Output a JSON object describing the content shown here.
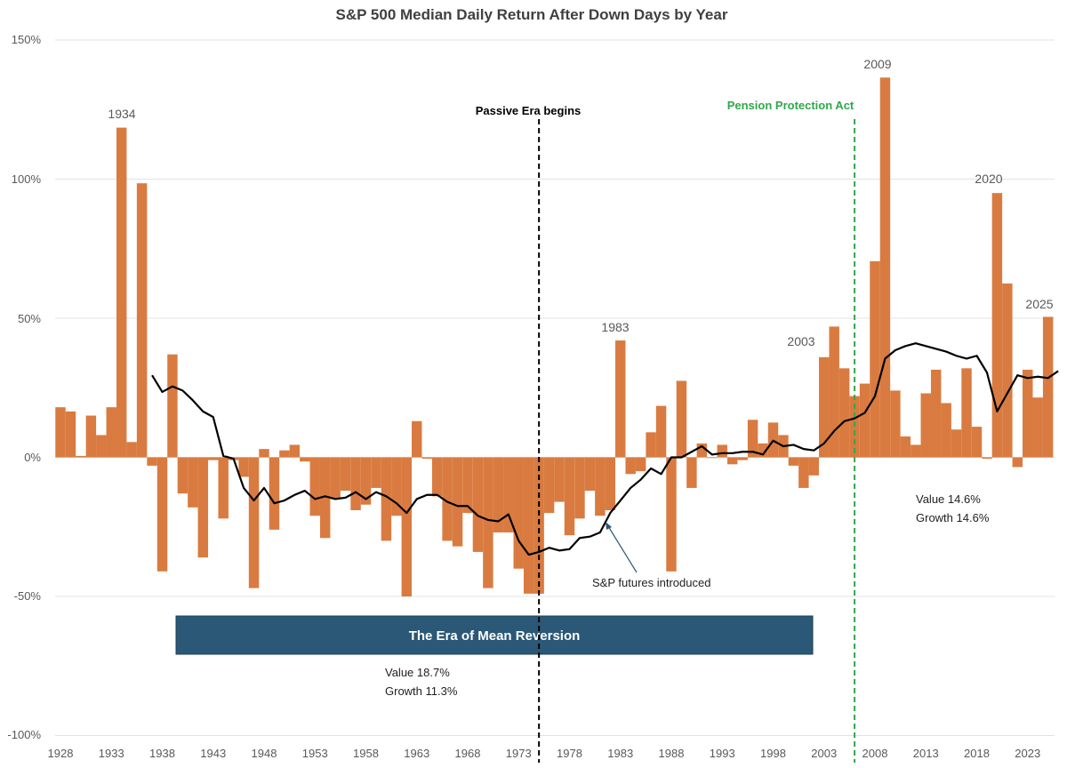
{
  "chart_data": {
    "type": "bar",
    "title": "S&P 500 Median Daily Return After Down Days by Year",
    "xlabel": "",
    "ylabel": "",
    "ylim": [
      -100,
      150
    ],
    "yticks": [
      "150%",
      "100%",
      "50%",
      "0%",
      "-50%",
      "-100%"
    ],
    "ytick_values": [
      150,
      100,
      50,
      0,
      -50,
      -100
    ],
    "xtick_labels": [
      "1928",
      "1933",
      "1938",
      "1943",
      "1948",
      "1953",
      "1958",
      "1963",
      "1968",
      "1973",
      "1978",
      "1983",
      "1988",
      "1993",
      "1998",
      "2003",
      "2008",
      "2013",
      "2018",
      "2023"
    ],
    "grid": true,
    "bar_color": "#d97b40",
    "line_color": "#000000",
    "years": [
      1928,
      1929,
      1930,
      1931,
      1932,
      1933,
      1934,
      1935,
      1936,
      1937,
      1938,
      1939,
      1940,
      1941,
      1942,
      1943,
      1944,
      1945,
      1946,
      1947,
      1948,
      1949,
      1950,
      1951,
      1952,
      1953,
      1954,
      1955,
      1956,
      1957,
      1958,
      1959,
      1960,
      1961,
      1962,
      1963,
      1964,
      1965,
      1966,
      1967,
      1968,
      1969,
      1970,
      1971,
      1972,
      1973,
      1974,
      1975,
      1976,
      1977,
      1978,
      1979,
      1980,
      1981,
      1982,
      1983,
      1984,
      1985,
      1986,
      1987,
      1988,
      1989,
      1990,
      1991,
      1992,
      1993,
      1994,
      1995,
      1996,
      1997,
      1998,
      1999,
      2000,
      2001,
      2002,
      2003,
      2004,
      2005,
      2006,
      2007,
      2008,
      2009,
      2010,
      2011,
      2012,
      2013,
      2014,
      2015,
      2016,
      2017,
      2018,
      2019,
      2020,
      2021,
      2022,
      2023,
      2024,
      2025
    ],
    "series": [
      {
        "name": "Median daily return after down days",
        "values": [
          18,
          16.5,
          0.5,
          15,
          8,
          18,
          118.5,
          5.5,
          98.5,
          -3,
          -41,
          37,
          -13,
          -18,
          -36,
          -1,
          -22,
          -1,
          -7,
          -47,
          3,
          -26,
          2.5,
          4.5,
          -1.5,
          -21,
          -29,
          -15,
          -12,
          -19,
          -17,
          -11,
          -30,
          -21,
          -50,
          13,
          -0.5,
          -14,
          -30,
          -32,
          -20,
          -34,
          -47,
          -27,
          -27,
          -40,
          -49,
          -49,
          -20,
          -16,
          -28,
          -22,
          -12,
          -21,
          -19,
          42,
          -6,
          -5,
          9,
          18.5,
          -41,
          27.5,
          -11,
          5,
          0,
          4.5,
          -2.5,
          -1,
          13.5,
          5,
          12.5,
          8,
          -3,
          -11,
          -6.5,
          36,
          47,
          32,
          22,
          26.5,
          70.5,
          136.5,
          24,
          7.5,
          4.5,
          23,
          31.5,
          19.5,
          10,
          32,
          11,
          -0.5,
          95,
          62.5,
          -3.5,
          31.5,
          21.5,
          50.5
        ]
      },
      {
        "name": "Rolling average",
        "type": "line",
        "start_year": 1937,
        "values": [
          29.5,
          23.5,
          25.5,
          24,
          20.5,
          16.5,
          14.5,
          0.5,
          -0.5,
          -11,
          -15.5,
          -11,
          -16.5,
          -15.5,
          -13.5,
          -12,
          -15,
          -14,
          -15,
          -14.5,
          -12.5,
          -15,
          -12.5,
          -14,
          -16.5,
          -20,
          -15,
          -13.5,
          -13.5,
          -16,
          -17.5,
          -17.5,
          -21,
          -22.5,
          -23,
          -20.5,
          -30,
          -35,
          -34,
          -32.5,
          -33.5,
          -33,
          -29,
          -28.5,
          -27,
          -20,
          -15.5,
          -11,
          -8,
          -4,
          -6,
          0,
          0,
          2,
          4,
          1,
          1.5,
          1.5,
          2,
          2,
          1,
          6,
          4,
          4.5,
          3,
          2.5,
          5,
          9.5,
          13,
          14,
          16,
          22,
          35.5,
          38.5,
          40,
          41,
          40,
          39,
          38,
          36.5,
          35.5,
          36.5,
          30.5,
          16.5,
          23,
          29.5,
          28.5,
          29,
          28.5,
          31
        ]
      }
    ],
    "labels": {
      "y1934": "1934",
      "y1983": "1983",
      "y2003": "2003",
      "y2009": "2009",
      "y2020": "2020",
      "y2025": "2025"
    },
    "annotations": {
      "passive": "Passive Era begins",
      "pension": "Pension Protection Act",
      "futures": "S&P futures introduced",
      "era_box": "The Era of Mean Reversion",
      "value_left": "Value 18.7%",
      "growth_left": "Growth 11.3%",
      "value_right": "Value 14.6%",
      "growth_right": "Growth 14.6%"
    },
    "passive_year": 1975,
    "pension_year": 2006
  }
}
